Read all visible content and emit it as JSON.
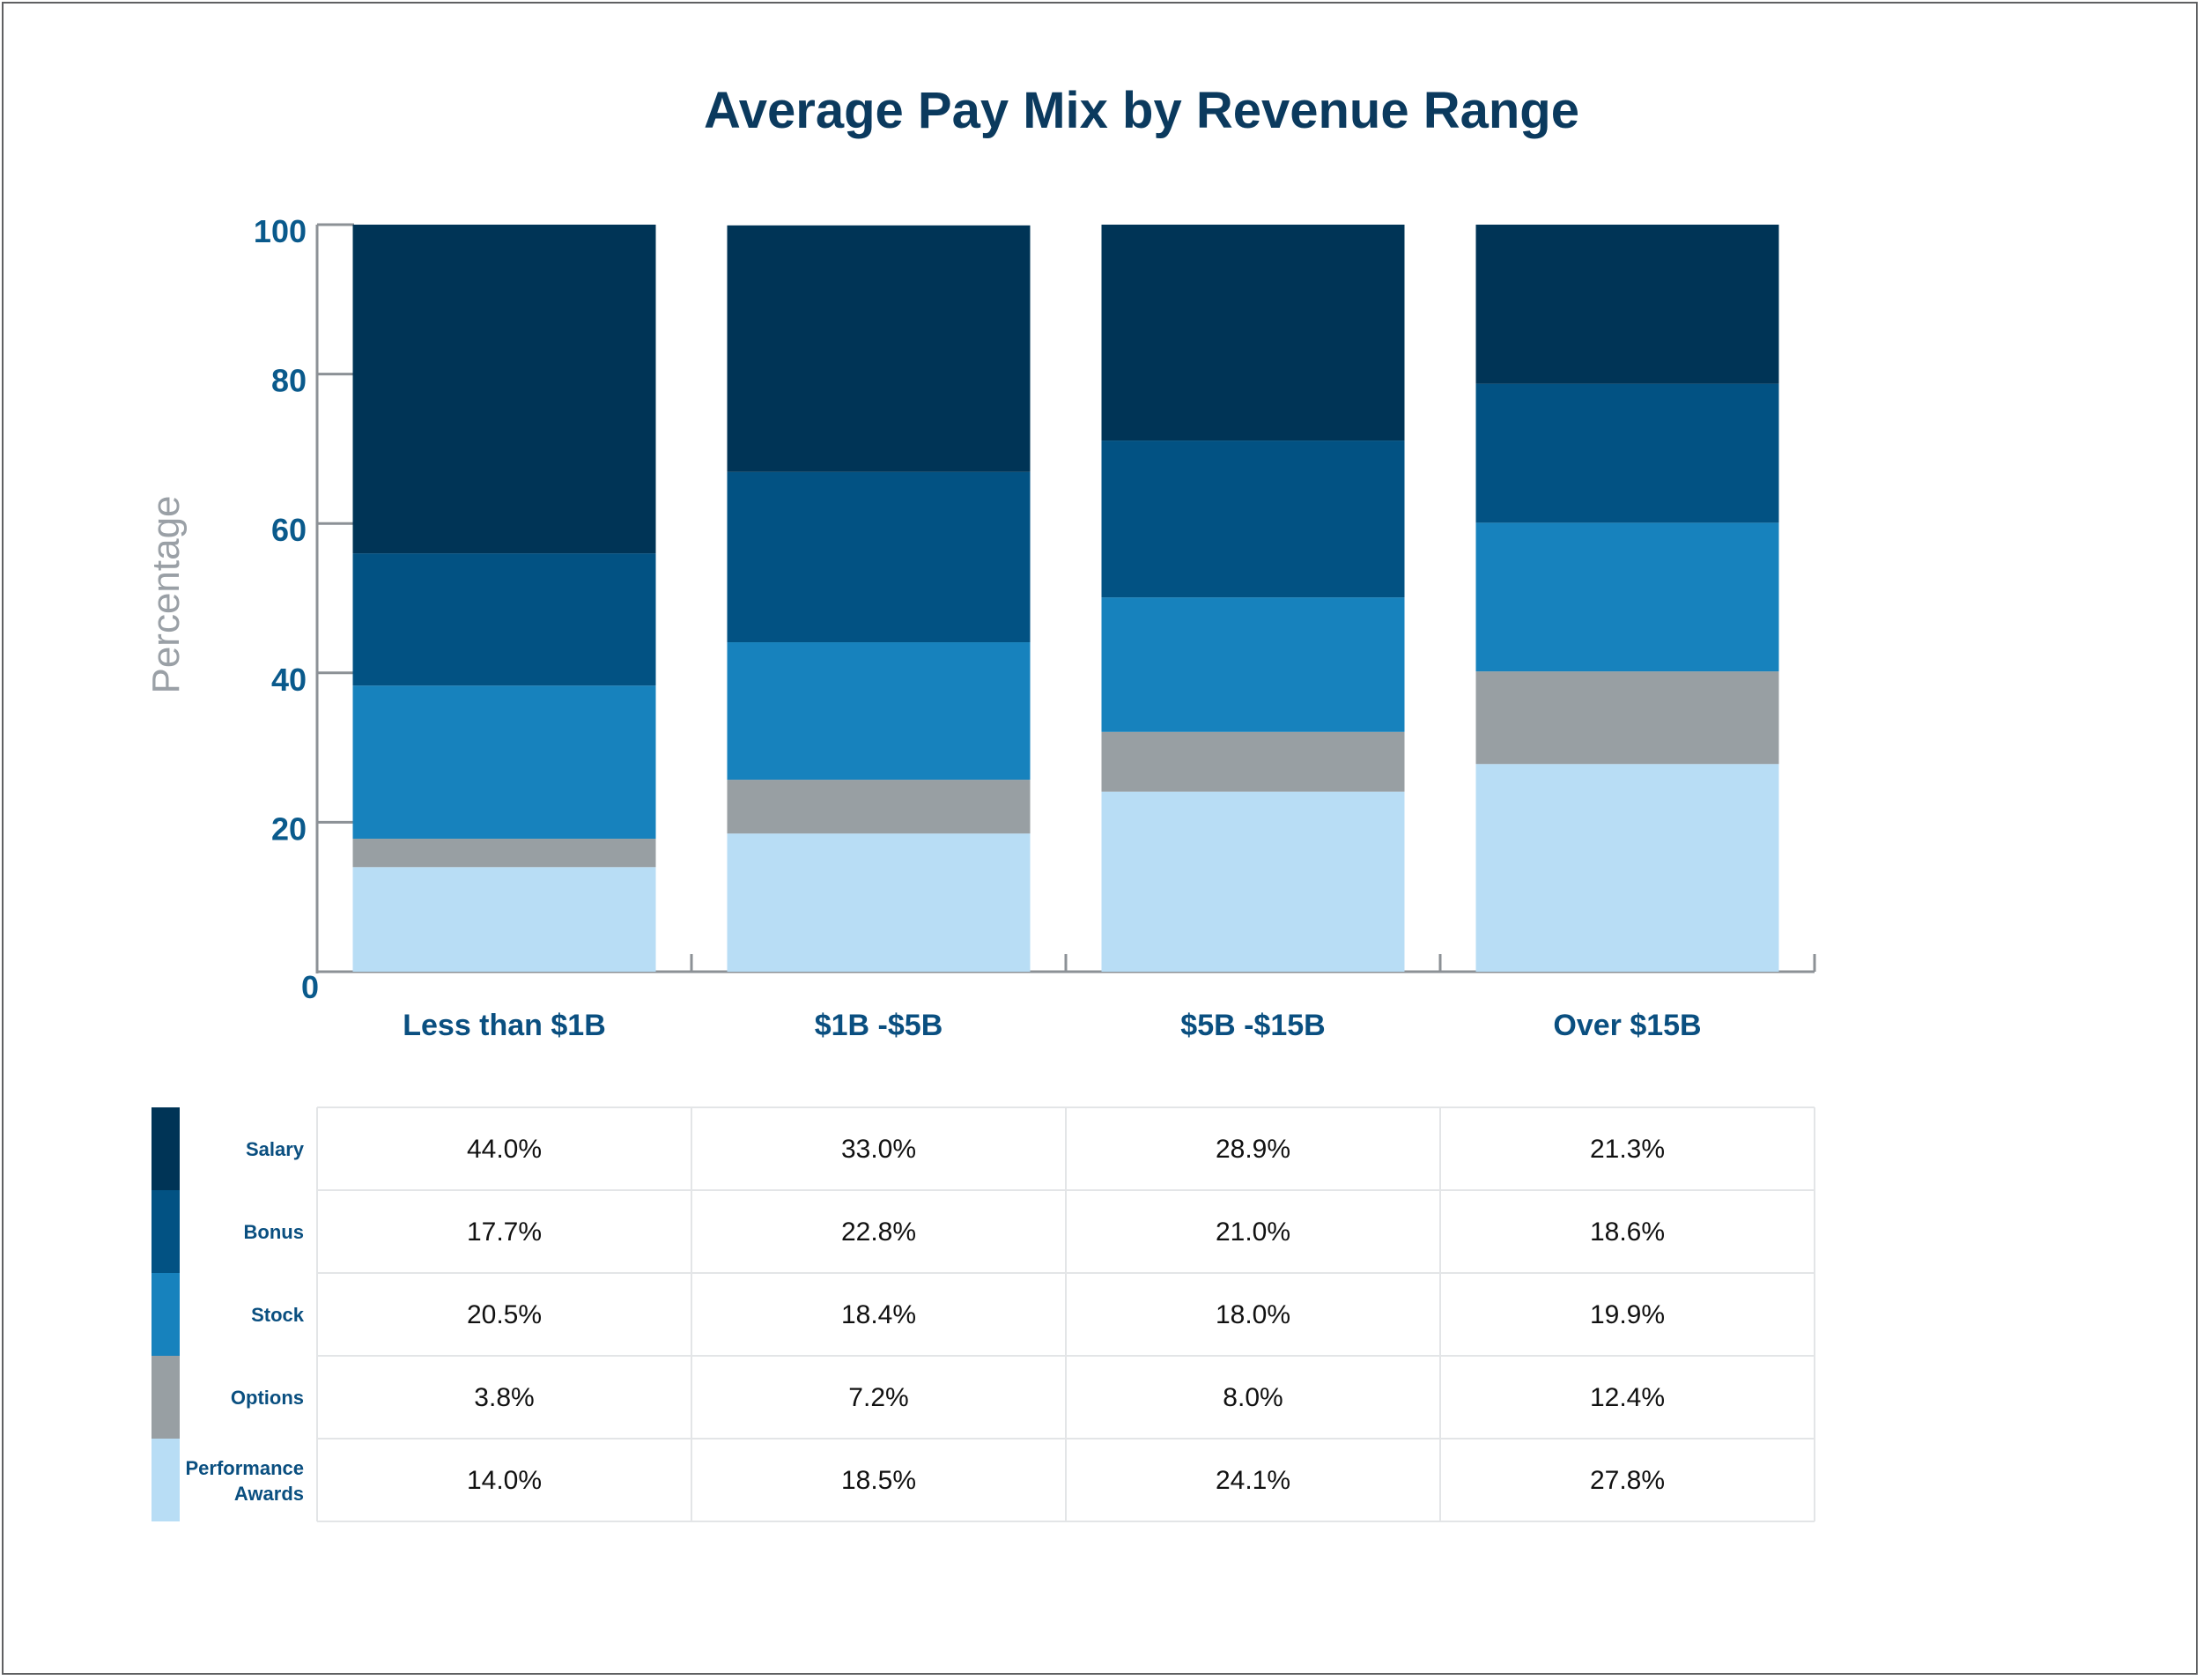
{
  "chart_data": {
    "type": "bar",
    "stacked": true,
    "title": "Average Pay Mix by Revenue Range",
    "ylabel": "Percentage",
    "xlabel": "",
    "ylim": [
      0,
      100
    ],
    "yticks": [
      0,
      20,
      40,
      60,
      80,
      100
    ],
    "categories": [
      "Less than $1B",
      "$1B -$5B",
      "$5B -$15B",
      "Over $15B"
    ],
    "series": [
      {
        "name": "Performance Awards",
        "color": "#b8ddf5",
        "values": [
          14.0,
          18.5,
          24.1,
          27.8
        ],
        "labels": [
          "14.0%",
          "18.5%",
          "24.1%",
          "27.8%"
        ]
      },
      {
        "name": "Options",
        "color": "#989fa3",
        "values": [
          3.8,
          7.2,
          8.0,
          12.4
        ],
        "labels": [
          "3.8%",
          "7.2%",
          "8.0%",
          "12.4%"
        ]
      },
      {
        "name": "Stock",
        "color": "#1782bd",
        "values": [
          20.5,
          18.4,
          18.0,
          19.9
        ],
        "labels": [
          "20.5%",
          "18.4%",
          "18.0%",
          "19.9%"
        ]
      },
      {
        "name": "Bonus",
        "color": "#025283",
        "values": [
          17.7,
          22.8,
          21.0,
          18.6
        ],
        "labels": [
          "17.7%",
          "22.8%",
          "21.0%",
          "18.6%"
        ]
      },
      {
        "name": "Salary",
        "color": "#003456",
        "values": [
          44.0,
          33.0,
          28.9,
          21.3
        ],
        "labels": [
          "44.0%",
          "33.0%",
          "28.9%",
          "21.3%"
        ]
      }
    ],
    "table_row_order": [
      "Salary",
      "Bonus",
      "Stock",
      "Options",
      "Performance Awards"
    ],
    "grid": false,
    "legend": "left of data table"
  },
  "colors": {
    "title": "#0b3a5e",
    "axis_ticks": "#0a5a8c",
    "axis_label": "#9aa0a6",
    "category_labels": "#0a4f80"
  }
}
